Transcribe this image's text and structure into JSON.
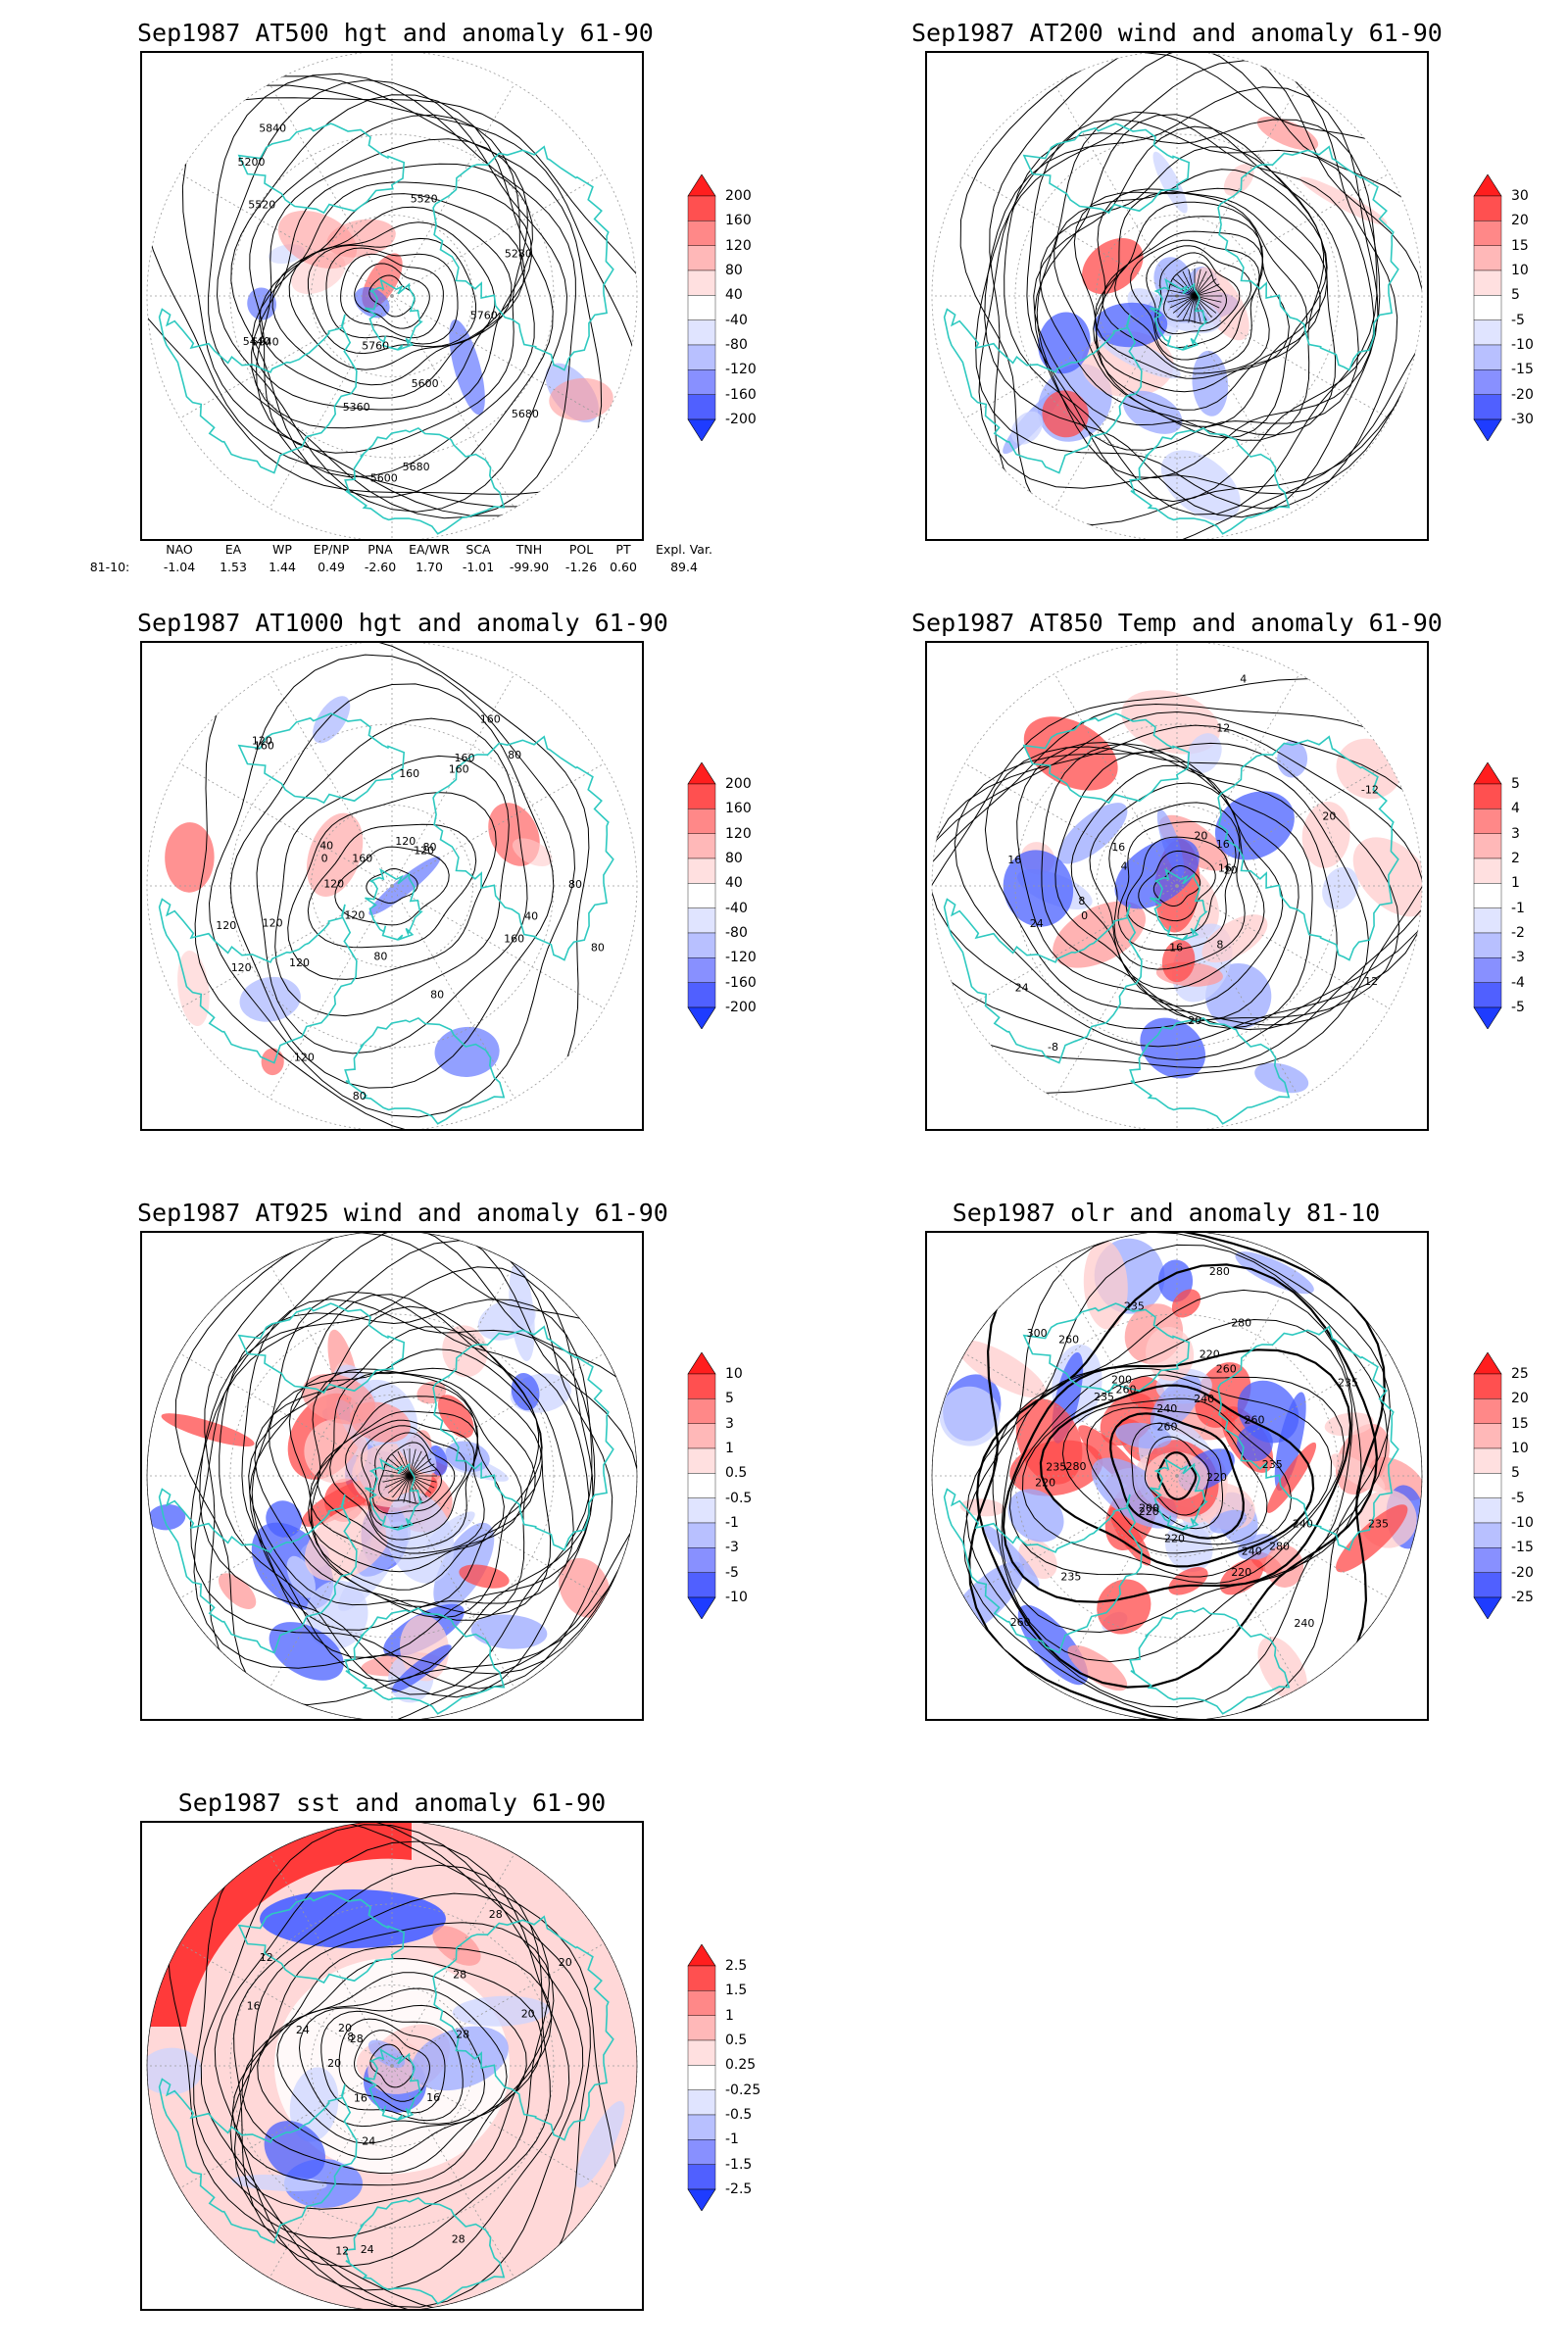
{
  "colors": {
    "land_outline": "#2ec9c0",
    "contour": "#000000",
    "neg_strong": "#1e3cff",
    "pos_strong": "#ff2020"
  },
  "panels": [
    {
      "id": "hgt500",
      "title": "Sep1987 AT500 hgt and anomaly 61-90",
      "colorbar": [
        "200",
        "160",
        "120",
        "80",
        "40",
        "-40",
        "-80",
        "-120",
        "-160",
        "-200"
      ],
      "contour_labels": [
        "5840",
        "5760",
        "5680",
        "5600",
        "5520",
        "5200",
        "5280",
        "5360",
        "5440",
        "5600",
        "5680",
        "5760",
        "5840",
        "5520"
      ]
    },
    {
      "id": "wind200",
      "title": "Sep1987 AT200 wind and anomaly 61-90",
      "colorbar": [
        "30",
        "20",
        "15",
        "10",
        "5",
        "-5",
        "-10",
        "-15",
        "-20",
        "-30"
      ],
      "contour_labels": []
    },
    {
      "id": "hgt1000",
      "title": "Sep1987 AT1000 hgt and anomaly 61-90",
      "colorbar": [
        "200",
        "160",
        "120",
        "80",
        "40",
        "-40",
        "-80",
        "-120",
        "-160",
        "-200"
      ],
      "contour_labels": [
        "120",
        "160",
        "120",
        "160",
        "120",
        "160",
        "80",
        "160",
        "120",
        "40",
        "80",
        "80",
        "120",
        "40",
        "0",
        "80",
        "120",
        "160",
        "160",
        "160",
        "120",
        "80",
        "120",
        "80",
        "120",
        "120",
        "80"
      ]
    },
    {
      "id": "temp850",
      "title": "Sep1987 AT850 Temp and anomaly 61-90",
      "colorbar": [
        "5",
        "4",
        "3",
        "2",
        "1",
        "-1",
        "-2",
        "-3",
        "-4",
        "-5"
      ],
      "contour_labels": [
        "16",
        "12",
        "16",
        "8",
        "4",
        "0",
        "20",
        "16",
        "24",
        "-12",
        "-8",
        "4",
        "8",
        "12",
        "20",
        "16",
        "24",
        "20",
        "16",
        "20"
      ]
    },
    {
      "id": "wind925",
      "title": "Sep1987 AT925 wind and anomaly 61-90",
      "colorbar": [
        "10",
        "5",
        "3",
        "1",
        "0.5",
        "-0.5",
        "-1",
        "-3",
        "-5",
        "-10"
      ],
      "contour_labels": []
    },
    {
      "id": "olr",
      "title": "Sep1987 olr and anomaly 81-10",
      "colorbar": [
        "25",
        "20",
        "15",
        "10",
        "5",
        "-5",
        "-10",
        "-15",
        "-20",
        "-25"
      ],
      "contour_labels": [
        "235",
        "240",
        "220",
        "220",
        "235",
        "260",
        "220",
        "240",
        "260",
        "235",
        "280",
        "260",
        "220",
        "240",
        "280",
        "235",
        "260",
        "240",
        "220",
        "240",
        "235",
        "280",
        "200",
        "260",
        "235",
        "300",
        "280",
        "260",
        "220",
        "200",
        "235"
      ]
    },
    {
      "id": "sst",
      "title": "Sep1987 sst and anomaly 61-90",
      "colorbar": [
        "2.5",
        "1.5",
        "1",
        "0.5",
        "0.25",
        "-0.25",
        "-0.5",
        "-1",
        "-1.5",
        "-2.5"
      ],
      "contour_labels": [
        "28",
        "24",
        "20",
        "16",
        "12",
        "24",
        "20",
        "12",
        "16",
        "20",
        "8",
        "16",
        "20",
        "24",
        "28",
        "28",
        "28",
        "28"
      ]
    }
  ],
  "indices": {
    "headers": [
      "NAO",
      "EA",
      "WP",
      "EP/NP",
      "PNA",
      "EA/WR",
      "SCA",
      "TNH",
      "POL",
      "PT",
      "Expl. Var."
    ],
    "row_label": "81-10:",
    "values": [
      "-1.04",
      "1.53",
      "1.44",
      "0.49",
      "-2.60",
      "1.70",
      "-1.01",
      "-99.90",
      "-1.26",
      "0.60",
      "89.4"
    ]
  }
}
